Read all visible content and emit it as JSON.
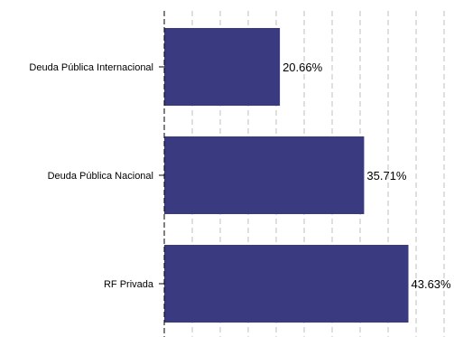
{
  "chart_data": {
    "type": "bar",
    "orientation": "horizontal",
    "categories": [
      "Deuda Pública Internacional",
      "Deuda Pública Nacional",
      "RF Privada"
    ],
    "values": [
      20.66,
      35.71,
      43.63
    ],
    "data_labels": [
      "20.66%",
      "35.71%",
      "43.63%"
    ],
    "title": "",
    "xlabel": "",
    "ylabel": "",
    "xlim": [
      0,
      50
    ],
    "grid": "vertical dashed gridlines",
    "legend": "none",
    "bar_color": "#3a3a80",
    "grid_color": "#bfbfbf",
    "axis_color": "#000000"
  }
}
